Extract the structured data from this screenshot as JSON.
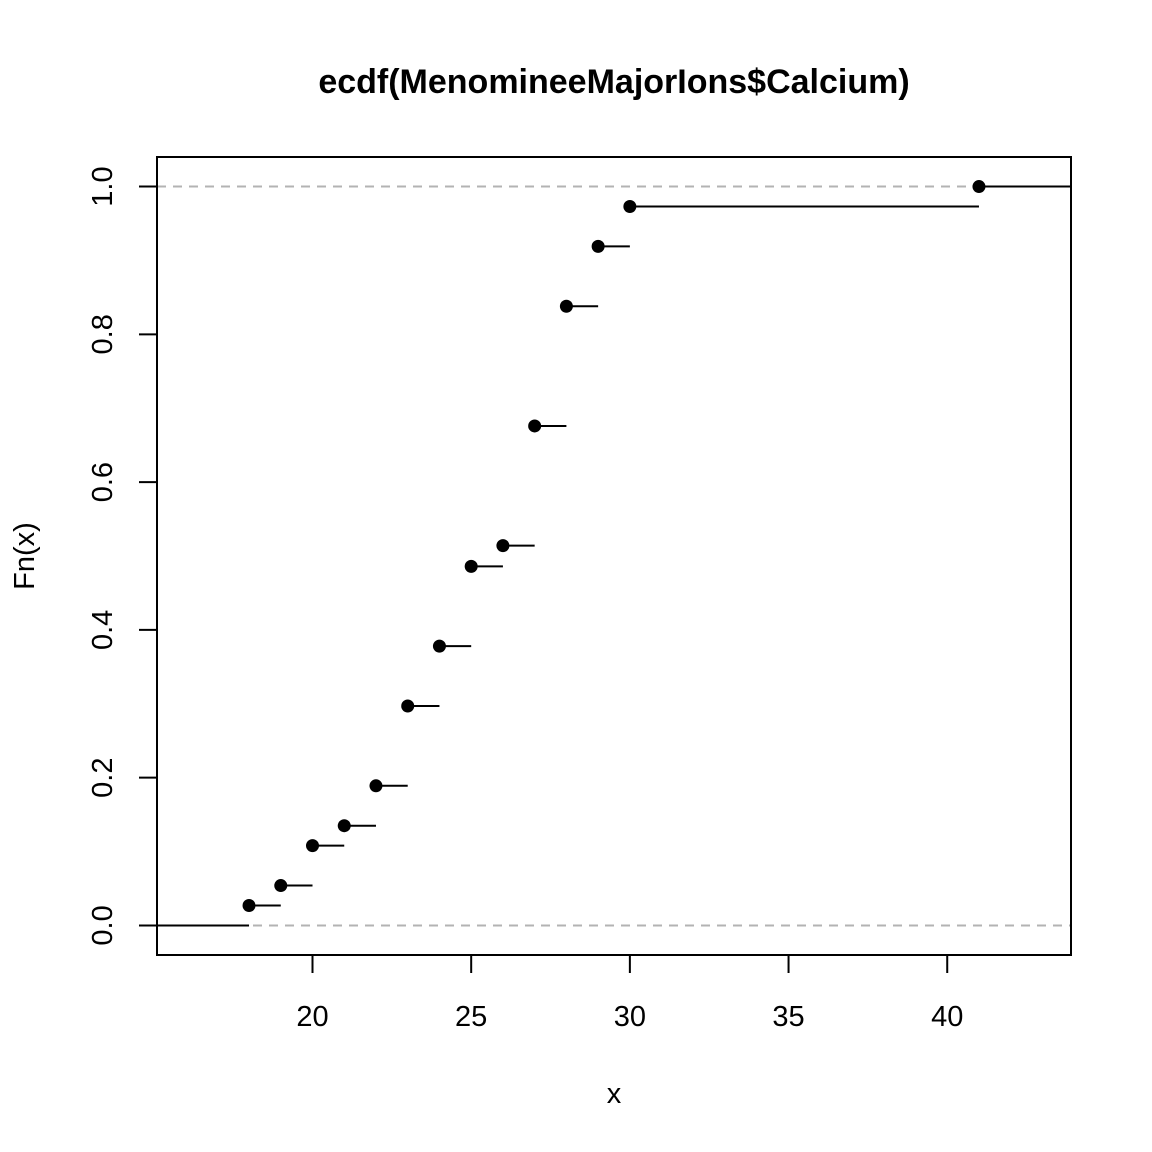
{
  "chart_data": {
    "type": "line",
    "subtype": "ecdf-step",
    "title": "ecdf(MenomineeMajorIons$Calcium)",
    "xlabel": "x",
    "ylabel": "Fn(x)",
    "xlim": [
      15.1,
      43.9
    ],
    "ylim": [
      -0.04,
      1.04
    ],
    "xticks": [
      "20",
      "25",
      "30",
      "35",
      "40"
    ],
    "xtick_values": [
      20,
      25,
      30,
      35,
      40
    ],
    "yticks": [
      "0.0",
      "0.2",
      "0.4",
      "0.6",
      "0.8",
      "1.0"
    ],
    "ytick_values": [
      0,
      0.2,
      0.4,
      0.6,
      0.8,
      1.0
    ],
    "reference_lines": [
      0,
      1
    ],
    "grid": false,
    "colors": {
      "points": "#000000",
      "steps": "#000000",
      "reference": "#b3b3b3"
    },
    "x": [
      18,
      19,
      20,
      21,
      22,
      23,
      24,
      25,
      26,
      27,
      28,
      29,
      30,
      41
    ],
    "y": [
      0.027,
      0.054,
      0.108,
      0.135,
      0.189,
      0.297,
      0.378,
      0.486,
      0.514,
      0.676,
      0.838,
      0.919,
      0.973,
      1.0
    ]
  }
}
